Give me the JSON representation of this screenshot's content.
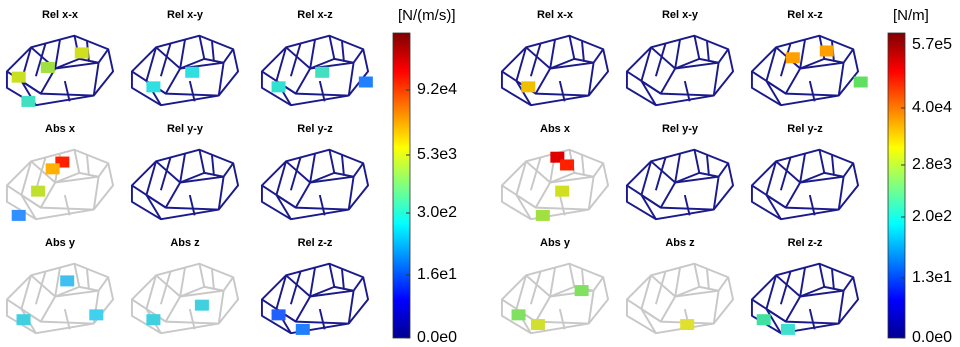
{
  "panels": [
    {
      "unit": "[N/(m/s)]",
      "subplots": [
        "Rel x-x",
        "Rel x-y",
        "Rel x-z",
        "Abs x",
        "Rel y-y",
        "Rel y-z",
        "Abs y",
        "Abs z",
        "Rel z-z"
      ],
      "colorbar_ticks": [
        "9.2e4",
        "5.3e3",
        "3.0e2",
        "1.6e1",
        "0.0e0"
      ]
    },
    {
      "unit": "[N/m]",
      "subplots": [
        "Rel x-x",
        "Rel x-y",
        "Rel x-z",
        "Abs x",
        "Rel y-y",
        "Rel y-z",
        "Abs y",
        "Abs z",
        "Rel z-z"
      ],
      "colorbar_ticks": [
        "5.7e5",
        "4.0e4",
        "2.8e3",
        "2.0e2",
        "1.3e1",
        "0.0e0"
      ]
    }
  ]
}
